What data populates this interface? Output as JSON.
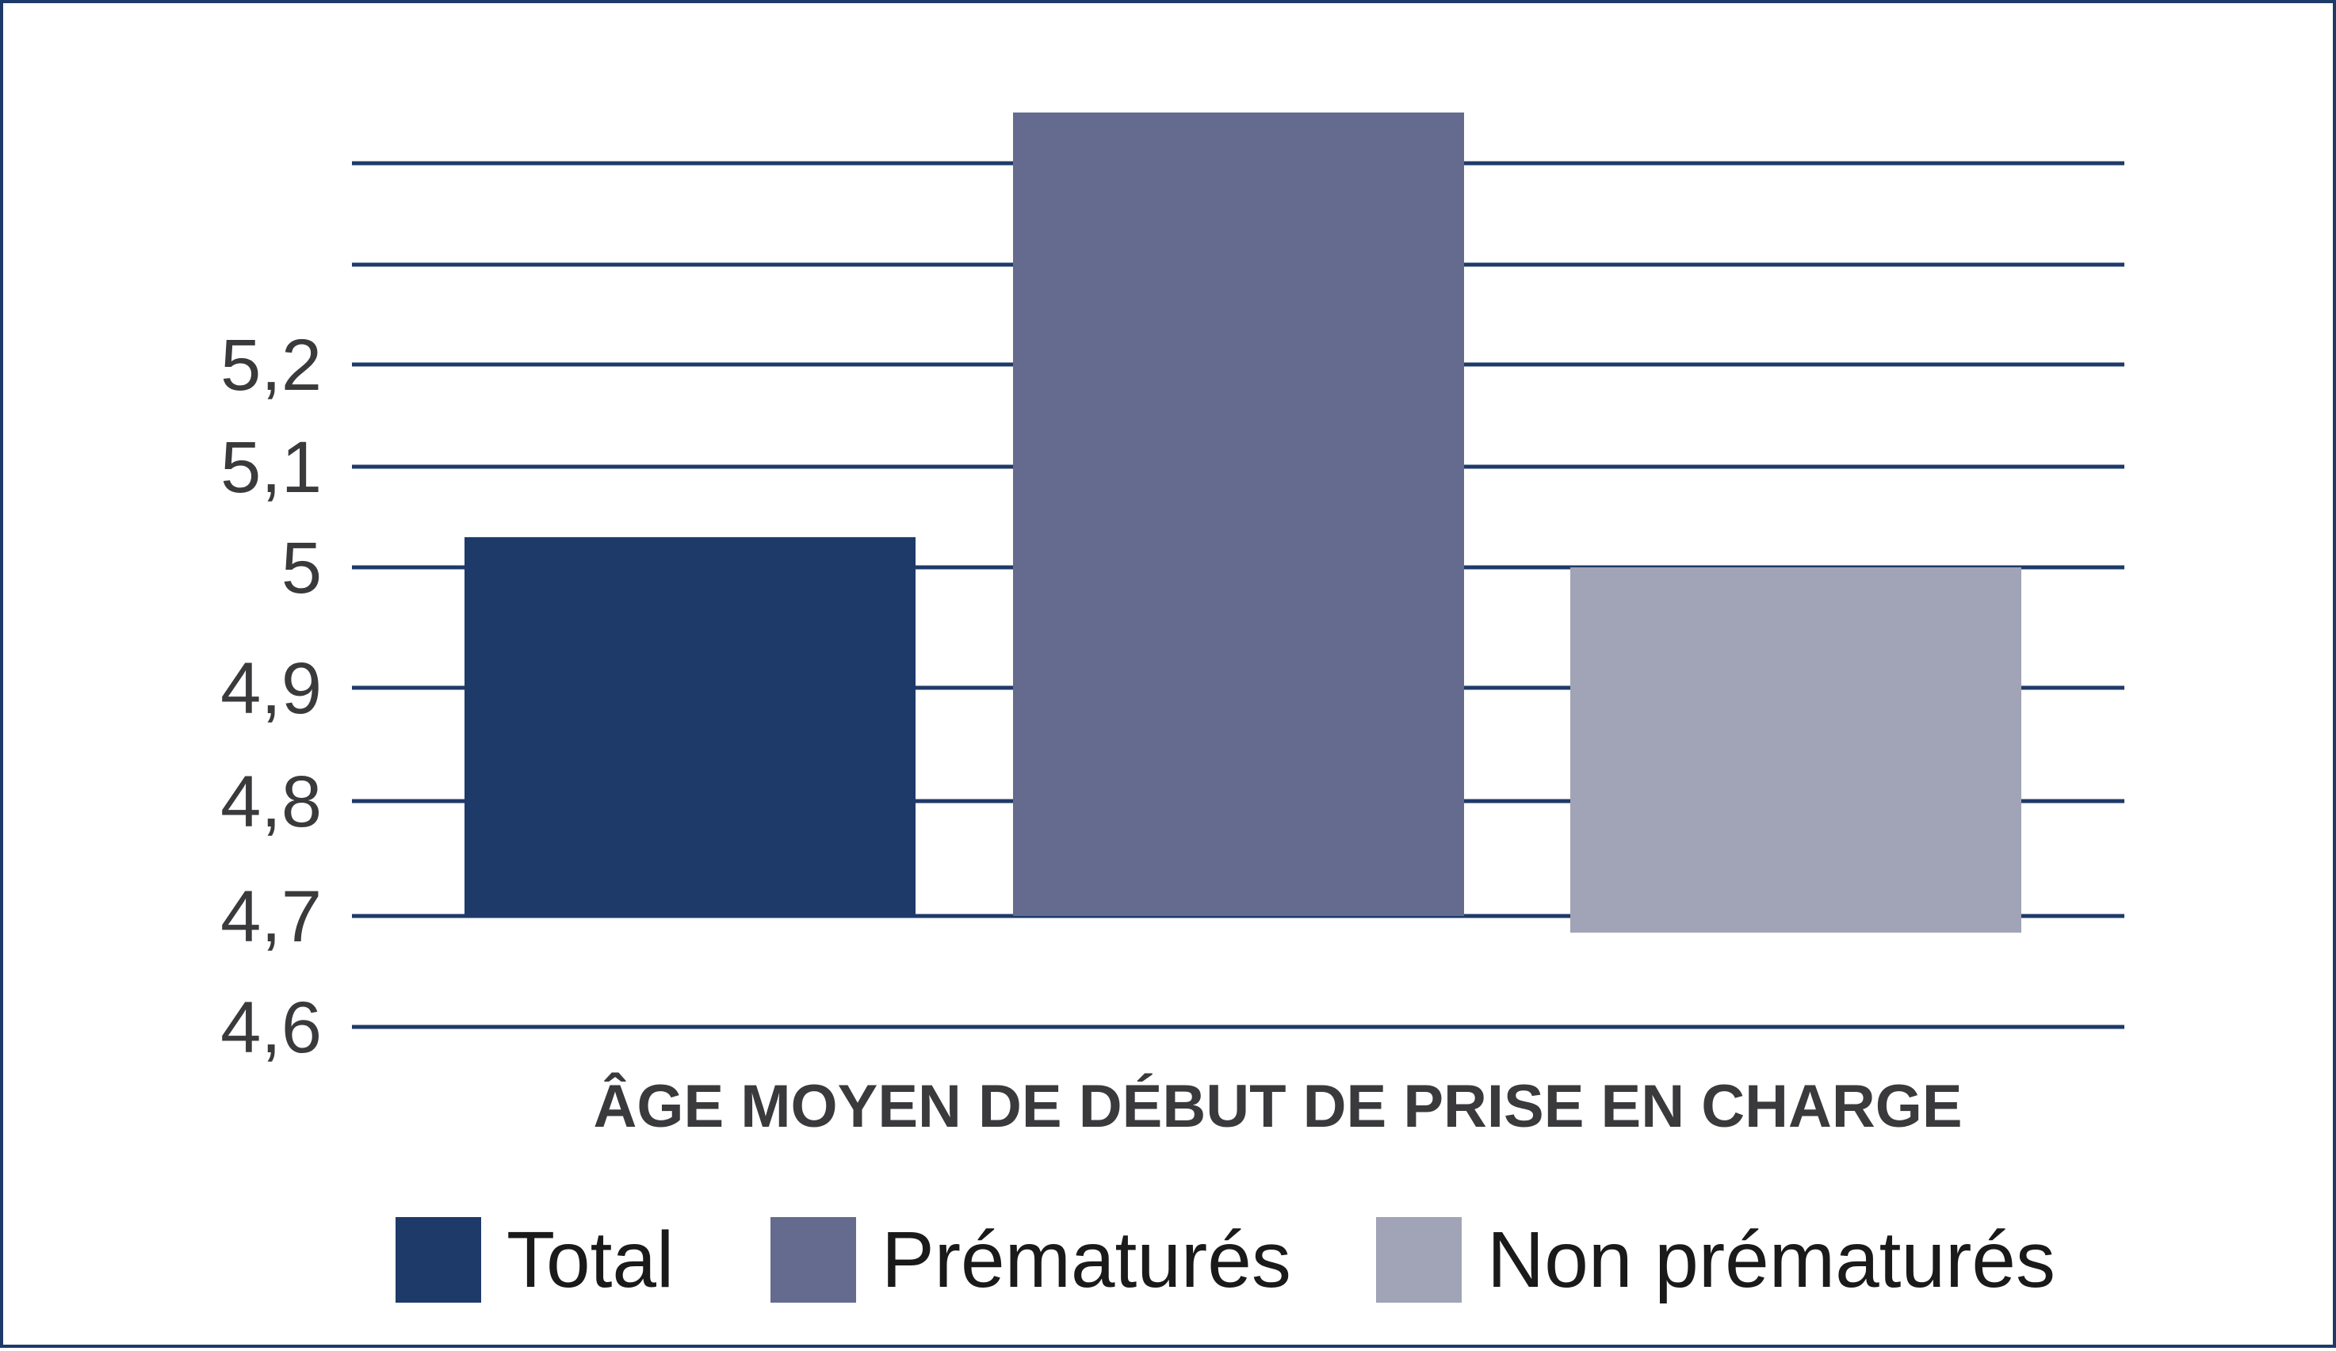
{
  "chart_data": {
    "type": "bar",
    "title": "",
    "xlabel": "ÂGE MOYEN DE DÉBUT DE PRISE EN CHARGE",
    "ylabel": "",
    "y_tick_labels": [
      "4,6",
      "4,7",
      "4,8",
      "4,9",
      "5",
      "5,1",
      "5,2"
    ],
    "grid": true,
    "legend_position": "bottom",
    "series": [
      {
        "name": "Total",
        "value": 5.03,
        "color": "#1e3a69"
      },
      {
        "name": "Prématurés",
        "value": 5.45,
        "color": "#656b8e"
      },
      {
        "name": "Non prématurés",
        "value": 5.0,
        "color": "#a1a3b6"
      }
    ]
  }
}
